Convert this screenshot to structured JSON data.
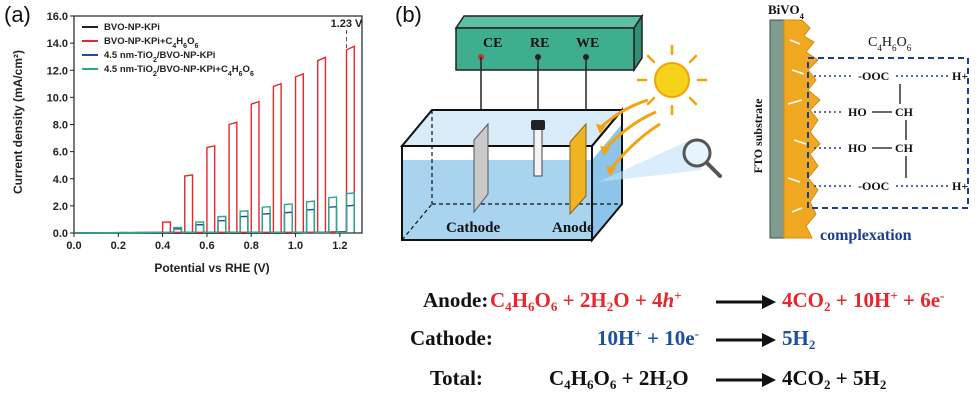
{
  "panel_a_label": "(a)",
  "panel_b_label": "(b)",
  "chart_data": {
    "type": "line",
    "xlabel": "Potential vs RHE (V)",
    "ylabel": "Current density (mA/cm²)",
    "xlim": [
      0.0,
      1.3
    ],
    "ylim": [
      0.0,
      16.0
    ],
    "xticks": [
      "0.0",
      "0.2",
      "0.4",
      "0.6",
      "0.8",
      "1.0",
      "1.2"
    ],
    "yticks": [
      "0.0",
      "2.0",
      "4.0",
      "6.0",
      "8.0",
      "10.0",
      "12.0",
      "14.0",
      "16.0"
    ],
    "annotation": "1.23 V",
    "annotation_x": 1.23,
    "series": [
      {
        "name": "BVO-NP-KPi",
        "color": "#222222",
        "x": [
          0.0,
          0.3,
          0.4,
          0.5,
          0.6,
          0.7,
          0.8,
          0.9,
          1.0,
          1.1,
          1.23
        ],
        "y": [
          0.0,
          0.0,
          0.0,
          0.0,
          0.0,
          0.0,
          0.0,
          0.0,
          0.0,
          0.05,
          0.1
        ]
      },
      {
        "name": "BVO-NP-KPi+C4H6O6",
        "color": "#e8262b",
        "chopped": true,
        "x": [
          0.4,
          0.5,
          0.6,
          0.7,
          0.8,
          0.9,
          1.0,
          1.1,
          1.23
        ],
        "y": [
          0.8,
          4.2,
          6.3,
          8.0,
          9.5,
          10.8,
          11.5,
          12.7,
          13.5
        ]
      },
      {
        "name": "4.5 nm-TiO2/BVO-NP-KPi",
        "color": "#1c4fa0",
        "chopped": true,
        "x": [
          0.45,
          0.55,
          0.65,
          0.75,
          0.85,
          0.95,
          1.05,
          1.15,
          1.23
        ],
        "y": [
          0.3,
          0.6,
          0.9,
          1.2,
          1.4,
          1.5,
          1.7,
          1.9,
          2.0
        ]
      },
      {
        "name": "4.5 nm-TiO2/BVO-NP-KPi+C4H6O6",
        "color": "#2aa88a",
        "chopped": true,
        "x": [
          0.45,
          0.55,
          0.65,
          0.75,
          0.85,
          0.95,
          1.05,
          1.15,
          1.23
        ],
        "y": [
          0.4,
          0.8,
          1.2,
          1.6,
          1.9,
          2.1,
          2.3,
          2.6,
          2.9
        ]
      }
    ]
  },
  "legend": {
    "items": [
      {
        "text": "BVO-NP-KPi",
        "color": "#222222"
      },
      {
        "text": "BVO-NP-KPi+C4H6O6",
        "color": "#e8262b"
      },
      {
        "text": "4.5 nm-TiO2/BVO-NP-KPi",
        "color": "#1c4fa0"
      },
      {
        "text": "4.5 nm-TiO2/BVO-NP-KPi+C4H6O6",
        "color": "#2aa88a"
      }
    ]
  },
  "cell": {
    "electrodes": [
      "CE",
      "RE",
      "WE"
    ],
    "cathode_label": "Cathode",
    "anode_label": "Anode"
  },
  "interface": {
    "bivo4_label": "BiVO4",
    "fto_label": "FTO substrate",
    "molecule_label": "C4H6O6",
    "complexation_label": "complexation",
    "groups": [
      "-OOC",
      "H+",
      "HO",
      "CH",
      "HO",
      "CH",
      "-OOC",
      "H+"
    ]
  },
  "equations": {
    "anode_label": "Anode:",
    "cathode_label": "Cathode:",
    "total_label": "Total:",
    "anode_lhs": "C4H6O6 + 2H2O + 4h+",
    "anode_rhs": "4CO2 + 10H+ + 6e-",
    "cathode_lhs": "10H+ + 10e-",
    "cathode_rhs": "5H2",
    "total_lhs": "C4H6O6 + 2H2O",
    "total_rhs": "4CO2 + 5H2"
  }
}
